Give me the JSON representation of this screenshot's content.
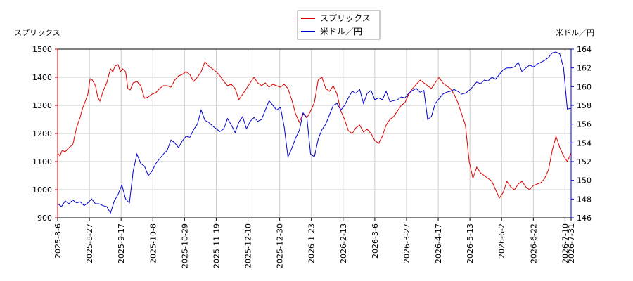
{
  "chart_data": {
    "type": "line",
    "y_left_label": "スプリックス",
    "y_right_label": "米ドル／円",
    "legend": {
      "placement": "top-center",
      "entries": [
        "スプリックス",
        "米ドル／円"
      ]
    },
    "grid": true,
    "ylim_left": [
      900,
      1500
    ],
    "ylim_right": [
      146,
      164
    ],
    "y_left_ticks": [
      900,
      1000,
      1100,
      1200,
      1300,
      1400,
      1500
    ],
    "y_right_ticks": [
      146,
      148,
      150,
      152,
      154,
      156,
      158,
      160,
      162,
      164
    ],
    "x_tick_labels": [
      "2025-8-6",
      "2025-8-27",
      "2025-9-17",
      "2025-10-8",
      "2025-10-29",
      "2025-11-19",
      "2025-12-10",
      "2025-12-30",
      "2026-1-23",
      "2026-2-13",
      "2026-3-6",
      "2026-3-27",
      "2026-4-17",
      "2026-5-13",
      "2026-6-2",
      "2026-6-22",
      "2026-7-10",
      "2026-7-31"
    ],
    "colors": {
      "series1": "#dd0000",
      "series2": "#0000cc",
      "grid": "#cccccc"
    },
    "series": [
      {
        "name": "スプリックス",
        "axis": "left",
        "points": [
          [
            0,
            1130
          ],
          [
            0.3,
            1120
          ],
          [
            0.6,
            1140
          ],
          [
            1,
            1135
          ],
          [
            1.5,
            1150
          ],
          [
            2,
            1160
          ],
          [
            2.5,
            1220
          ],
          [
            3,
            1260
          ],
          [
            3.3,
            1290
          ],
          [
            3.6,
            1310
          ],
          [
            4,
            1340
          ],
          [
            4.3,
            1395
          ],
          [
            4.6,
            1390
          ],
          [
            5,
            1370
          ],
          [
            5.3,
            1330
          ],
          [
            5.6,
            1315
          ],
          [
            6,
            1350
          ],
          [
            6.5,
            1380
          ],
          [
            7,
            1430
          ],
          [
            7.3,
            1420
          ],
          [
            7.6,
            1440
          ],
          [
            8,
            1445
          ],
          [
            8.3,
            1420
          ],
          [
            8.6,
            1430
          ],
          [
            9,
            1420
          ],
          [
            9.3,
            1360
          ],
          [
            9.6,
            1355
          ],
          [
            10,
            1380
          ],
          [
            10.5,
            1385
          ],
          [
            11,
            1370
          ],
          [
            11.5,
            1325
          ],
          [
            12,
            1330
          ],
          [
            12.5,
            1340
          ],
          [
            13,
            1345
          ],
          [
            13.5,
            1360
          ],
          [
            14,
            1370
          ],
          [
            14.5,
            1370
          ],
          [
            15,
            1365
          ],
          [
            15.5,
            1390
          ],
          [
            16,
            1405
          ],
          [
            16.5,
            1410
          ],
          [
            17,
            1420
          ],
          [
            17.5,
            1410
          ],
          [
            18,
            1385
          ],
          [
            18.5,
            1400
          ],
          [
            19,
            1420
          ],
          [
            19.5,
            1455
          ],
          [
            20,
            1440
          ],
          [
            20.5,
            1430
          ],
          [
            21,
            1420
          ],
          [
            21.5,
            1405
          ],
          [
            22,
            1385
          ],
          [
            22.5,
            1370
          ],
          [
            23,
            1375
          ],
          [
            23.5,
            1360
          ],
          [
            24,
            1320
          ],
          [
            24.5,
            1340
          ],
          [
            25,
            1360
          ],
          [
            25.5,
            1380
          ],
          [
            26,
            1400
          ],
          [
            26.5,
            1380
          ],
          [
            27,
            1370
          ],
          [
            27.5,
            1380
          ],
          [
            28,
            1365
          ],
          [
            28.5,
            1375
          ],
          [
            29,
            1370
          ],
          [
            29.5,
            1365
          ],
          [
            30,
            1375
          ],
          [
            30.5,
            1360
          ],
          [
            31,
            1320
          ],
          [
            31.5,
            1270
          ],
          [
            32,
            1240
          ],
          [
            32.5,
            1270
          ],
          [
            33,
            1255
          ],
          [
            33.5,
            1280
          ],
          [
            34,
            1310
          ],
          [
            34.5,
            1390
          ],
          [
            35,
            1400
          ],
          [
            35.5,
            1360
          ],
          [
            36,
            1350
          ],
          [
            36.5,
            1370
          ],
          [
            37,
            1340
          ],
          [
            37.5,
            1280
          ],
          [
            38,
            1250
          ],
          [
            38.5,
            1210
          ],
          [
            39,
            1200
          ],
          [
            39.5,
            1220
          ],
          [
            40,
            1230
          ],
          [
            40.5,
            1205
          ],
          [
            41,
            1215
          ],
          [
            41.5,
            1200
          ],
          [
            42,
            1175
          ],
          [
            42.5,
            1165
          ],
          [
            43,
            1190
          ],
          [
            43.5,
            1230
          ],
          [
            44,
            1250
          ],
          [
            44.5,
            1260
          ],
          [
            45,
            1280
          ],
          [
            45.5,
            1300
          ],
          [
            46,
            1310
          ],
          [
            46.5,
            1340
          ],
          [
            47,
            1360
          ],
          [
            47.5,
            1375
          ],
          [
            48,
            1390
          ],
          [
            48.5,
            1380
          ],
          [
            49,
            1370
          ],
          [
            49.5,
            1360
          ],
          [
            50,
            1380
          ],
          [
            50.5,
            1400
          ],
          [
            51,
            1380
          ],
          [
            51.5,
            1370
          ],
          [
            52,
            1360
          ],
          [
            52.5,
            1340
          ],
          [
            53,
            1310
          ],
          [
            53.5,
            1270
          ],
          [
            54,
            1230
          ],
          [
            54.5,
            1100
          ],
          [
            55,
            1040
          ],
          [
            55.5,
            1080
          ],
          [
            56,
            1060
          ],
          [
            56.5,
            1050
          ],
          [
            57,
            1040
          ],
          [
            57.5,
            1030
          ],
          [
            58,
            1000
          ],
          [
            58.5,
            970
          ],
          [
            59,
            990
          ],
          [
            59.5,
            1030
          ],
          [
            60,
            1010
          ],
          [
            60.5,
            1000
          ],
          [
            61,
            1020
          ],
          [
            61.5,
            1030
          ],
          [
            62,
            1010
          ],
          [
            62.5,
            1000
          ],
          [
            63,
            1015
          ],
          [
            63.5,
            1020
          ],
          [
            64,
            1025
          ],
          [
            64.5,
            1040
          ],
          [
            65,
            1070
          ],
          [
            65.5,
            1140
          ],
          [
            66,
            1190
          ],
          [
            66.5,
            1150
          ],
          [
            67,
            1120
          ],
          [
            67.5,
            1100
          ],
          [
            68,
            1130
          ]
        ]
      },
      {
        "name": "米ドル／円",
        "axis": "right",
        "points": [
          [
            0,
            147.5
          ],
          [
            0.5,
            147.2
          ],
          [
            1,
            147.8
          ],
          [
            1.5,
            147.5
          ],
          [
            2,
            147.9
          ],
          [
            2.5,
            147.6
          ],
          [
            3,
            147.7
          ],
          [
            3.5,
            147.3
          ],
          [
            4,
            147.6
          ],
          [
            4.5,
            148.0
          ],
          [
            5,
            147.5
          ],
          [
            5.5,
            147.5
          ],
          [
            6,
            147.3
          ],
          [
            6.5,
            147.2
          ],
          [
            7,
            146.5
          ],
          [
            7.5,
            147.8
          ],
          [
            8,
            148.5
          ],
          [
            8.5,
            149.5
          ],
          [
            9,
            148.0
          ],
          [
            9.5,
            147.6
          ],
          [
            10,
            151.0
          ],
          [
            10.5,
            152.8
          ],
          [
            11,
            151.8
          ],
          [
            11.5,
            151.5
          ],
          [
            12,
            150.5
          ],
          [
            12.5,
            151.0
          ],
          [
            13,
            151.8
          ],
          [
            13.5,
            152.3
          ],
          [
            14,
            152.8
          ],
          [
            14.5,
            153.2
          ],
          [
            15,
            154.3
          ],
          [
            15.5,
            154.0
          ],
          [
            16,
            153.5
          ],
          [
            16.5,
            154.2
          ],
          [
            17,
            154.7
          ],
          [
            17.5,
            154.6
          ],
          [
            18,
            155.4
          ],
          [
            18.5,
            156.0
          ],
          [
            19,
            157.5
          ],
          [
            19.5,
            156.4
          ],
          [
            20,
            156.2
          ],
          [
            20.5,
            155.8
          ],
          [
            21,
            155.5
          ],
          [
            21.5,
            155.2
          ],
          [
            22,
            155.5
          ],
          [
            22.5,
            156.6
          ],
          [
            23,
            155.9
          ],
          [
            23.5,
            155.1
          ],
          [
            24,
            156.2
          ],
          [
            24.5,
            156.8
          ],
          [
            25,
            155.5
          ],
          [
            25.5,
            156.3
          ],
          [
            26,
            156.7
          ],
          [
            26.5,
            156.3
          ],
          [
            27,
            156.5
          ],
          [
            27.5,
            157.5
          ],
          [
            28,
            158.5
          ],
          [
            28.5,
            158.0
          ],
          [
            29,
            157.5
          ],
          [
            29.5,
            157.8
          ],
          [
            30,
            155.7
          ],
          [
            30.5,
            152.5
          ],
          [
            31,
            153.4
          ],
          [
            31.5,
            154.5
          ],
          [
            32,
            155.3
          ],
          [
            32.5,
            157.2
          ],
          [
            33,
            156.7
          ],
          [
            33.5,
            152.8
          ],
          [
            34,
            152.5
          ],
          [
            34.5,
            154.4
          ],
          [
            35,
            155.4
          ],
          [
            35.5,
            156.0
          ],
          [
            36,
            157.0
          ],
          [
            36.5,
            158.0
          ],
          [
            37,
            158.2
          ],
          [
            37.5,
            157.5
          ],
          [
            38,
            158.0
          ],
          [
            38.5,
            158.8
          ],
          [
            39,
            159.5
          ],
          [
            39.5,
            159.3
          ],
          [
            40,
            159.7
          ],
          [
            40.5,
            158.2
          ],
          [
            41,
            159.3
          ],
          [
            41.5,
            159.6
          ],
          [
            42,
            158.6
          ],
          [
            42.5,
            158.8
          ],
          [
            43,
            158.6
          ],
          [
            43.5,
            159.5
          ],
          [
            44,
            158.4
          ],
          [
            44.5,
            158.5
          ],
          [
            45,
            158.6
          ],
          [
            45.5,
            158.9
          ],
          [
            46,
            158.8
          ],
          [
            46.5,
            159.3
          ],
          [
            47,
            159.6
          ],
          [
            47.5,
            159.8
          ],
          [
            48,
            159.4
          ],
          [
            48.5,
            159.6
          ],
          [
            49,
            156.5
          ],
          [
            49.5,
            156.8
          ],
          [
            50,
            158.2
          ],
          [
            50.5,
            158.7
          ],
          [
            51,
            159.2
          ],
          [
            51.5,
            159.4
          ],
          [
            52,
            159.5
          ],
          [
            52.5,
            159.7
          ],
          [
            53,
            159.5
          ],
          [
            53.5,
            159.2
          ],
          [
            54,
            159.3
          ],
          [
            54.5,
            159.6
          ],
          [
            55,
            160.0
          ],
          [
            55.5,
            160.5
          ],
          [
            56,
            160.3
          ],
          [
            56.5,
            160.7
          ],
          [
            57,
            160.6
          ],
          [
            57.5,
            161.0
          ],
          [
            58,
            160.8
          ],
          [
            58.5,
            161.3
          ],
          [
            59,
            161.8
          ],
          [
            59.5,
            162.0
          ],
          [
            60,
            162.0
          ],
          [
            60.5,
            162.1
          ],
          [
            61,
            162.6
          ],
          [
            61.5,
            161.6
          ],
          [
            62,
            162.0
          ],
          [
            62.5,
            162.3
          ],
          [
            63,
            162.1
          ],
          [
            63.5,
            162.4
          ],
          [
            64,
            162.6
          ],
          [
            64.5,
            162.8
          ],
          [
            65,
            163.1
          ],
          [
            65.5,
            163.6
          ],
          [
            66,
            163.7
          ],
          [
            66.5,
            163.5
          ],
          [
            67,
            162.0
          ],
          [
            67.5,
            157.6
          ],
          [
            68,
            157.7
          ]
        ]
      }
    ]
  }
}
